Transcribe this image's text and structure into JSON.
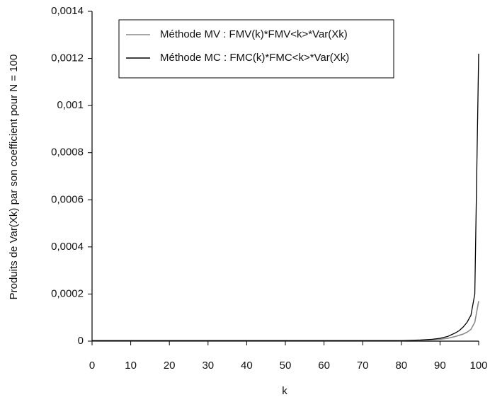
{
  "chart_data": {
    "type": "line",
    "x_label": "k",
    "y_label": "Produits de Var(Xk) par son coefficient pour N = 100",
    "x": [
      0,
      10,
      20,
      30,
      40,
      50,
      60,
      70,
      80,
      85,
      88,
      90,
      92,
      94,
      95,
      96,
      97,
      98,
      99,
      100
    ],
    "series": [
      {
        "name": "Méthode MV : FMV(k)*FMV<k>*Var(Xk)",
        "color": "#8a8a8a",
        "values": [
          2e-06,
          2e-06,
          2e-06,
          2e-06,
          2e-06,
          2e-06,
          2e-06,
          2e-06,
          2e-06,
          4e-06,
          6e-06,
          8e-06,
          1.2e-05,
          2e-05,
          2.5e-05,
          3e-05,
          3.8e-05,
          5e-05,
          8e-05,
          0.00017
        ]
      },
      {
        "name": "Méthode MC : FMC(k)*FMC<k>*Var(Xk)",
        "color": "#000000",
        "values": [
          2e-06,
          2e-06,
          2e-06,
          2e-06,
          2e-06,
          2e-06,
          2e-06,
          2e-06,
          2e-06,
          5e-06,
          8e-06,
          1.2e-05,
          2e-05,
          3.5e-05,
          4.5e-05,
          6e-05,
          8e-05,
          0.00011,
          0.0002,
          0.00122
        ]
      }
    ],
    "xlim": [
      0,
      100
    ],
    "xticks": [
      0,
      10,
      20,
      30,
      40,
      50,
      60,
      70,
      80,
      90,
      100
    ],
    "ylim": [
      0,
      0.0014
    ],
    "yticks": [
      0,
      {
        "value": 0.0002,
        "label": "0,0002"
      },
      {
        "value": 0.0004,
        "label": "0,0004"
      },
      {
        "value": 0.0006,
        "label": "0,0006"
      },
      {
        "value": 0.0008,
        "label": "0,0008"
      },
      {
        "value": 0.001,
        "label": "0,001"
      },
      {
        "value": 0.0012,
        "label": "0,0012"
      },
      {
        "value": 0.0014,
        "label": "0,0014"
      }
    ],
    "grid": false
  }
}
